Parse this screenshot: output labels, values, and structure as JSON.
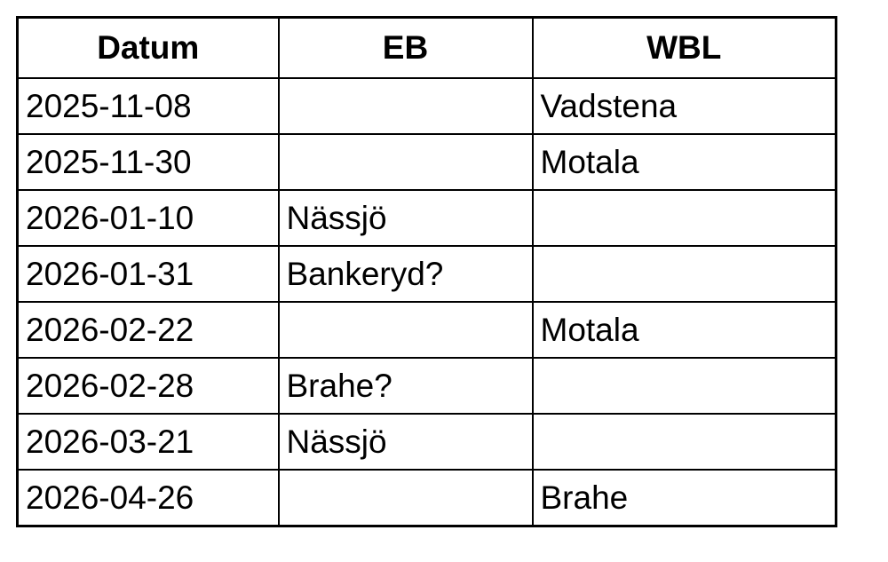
{
  "table": {
    "headers": [
      "Datum",
      "EB",
      "WBL"
    ],
    "rows": [
      [
        "2025-11-08",
        "",
        "Vadstena"
      ],
      [
        "2025-11-30",
        "",
        "Motala"
      ],
      [
        "2026-01-10",
        "Nässjö",
        ""
      ],
      [
        "2026-01-31",
        "Bankeryd?",
        ""
      ],
      [
        "2026-02-22",
        "",
        "Motala"
      ],
      [
        "2026-02-28",
        "Brahe?",
        ""
      ],
      [
        "2026-03-21",
        "Nässjö",
        ""
      ],
      [
        "2026-04-26",
        "",
        "Brahe"
      ]
    ]
  }
}
